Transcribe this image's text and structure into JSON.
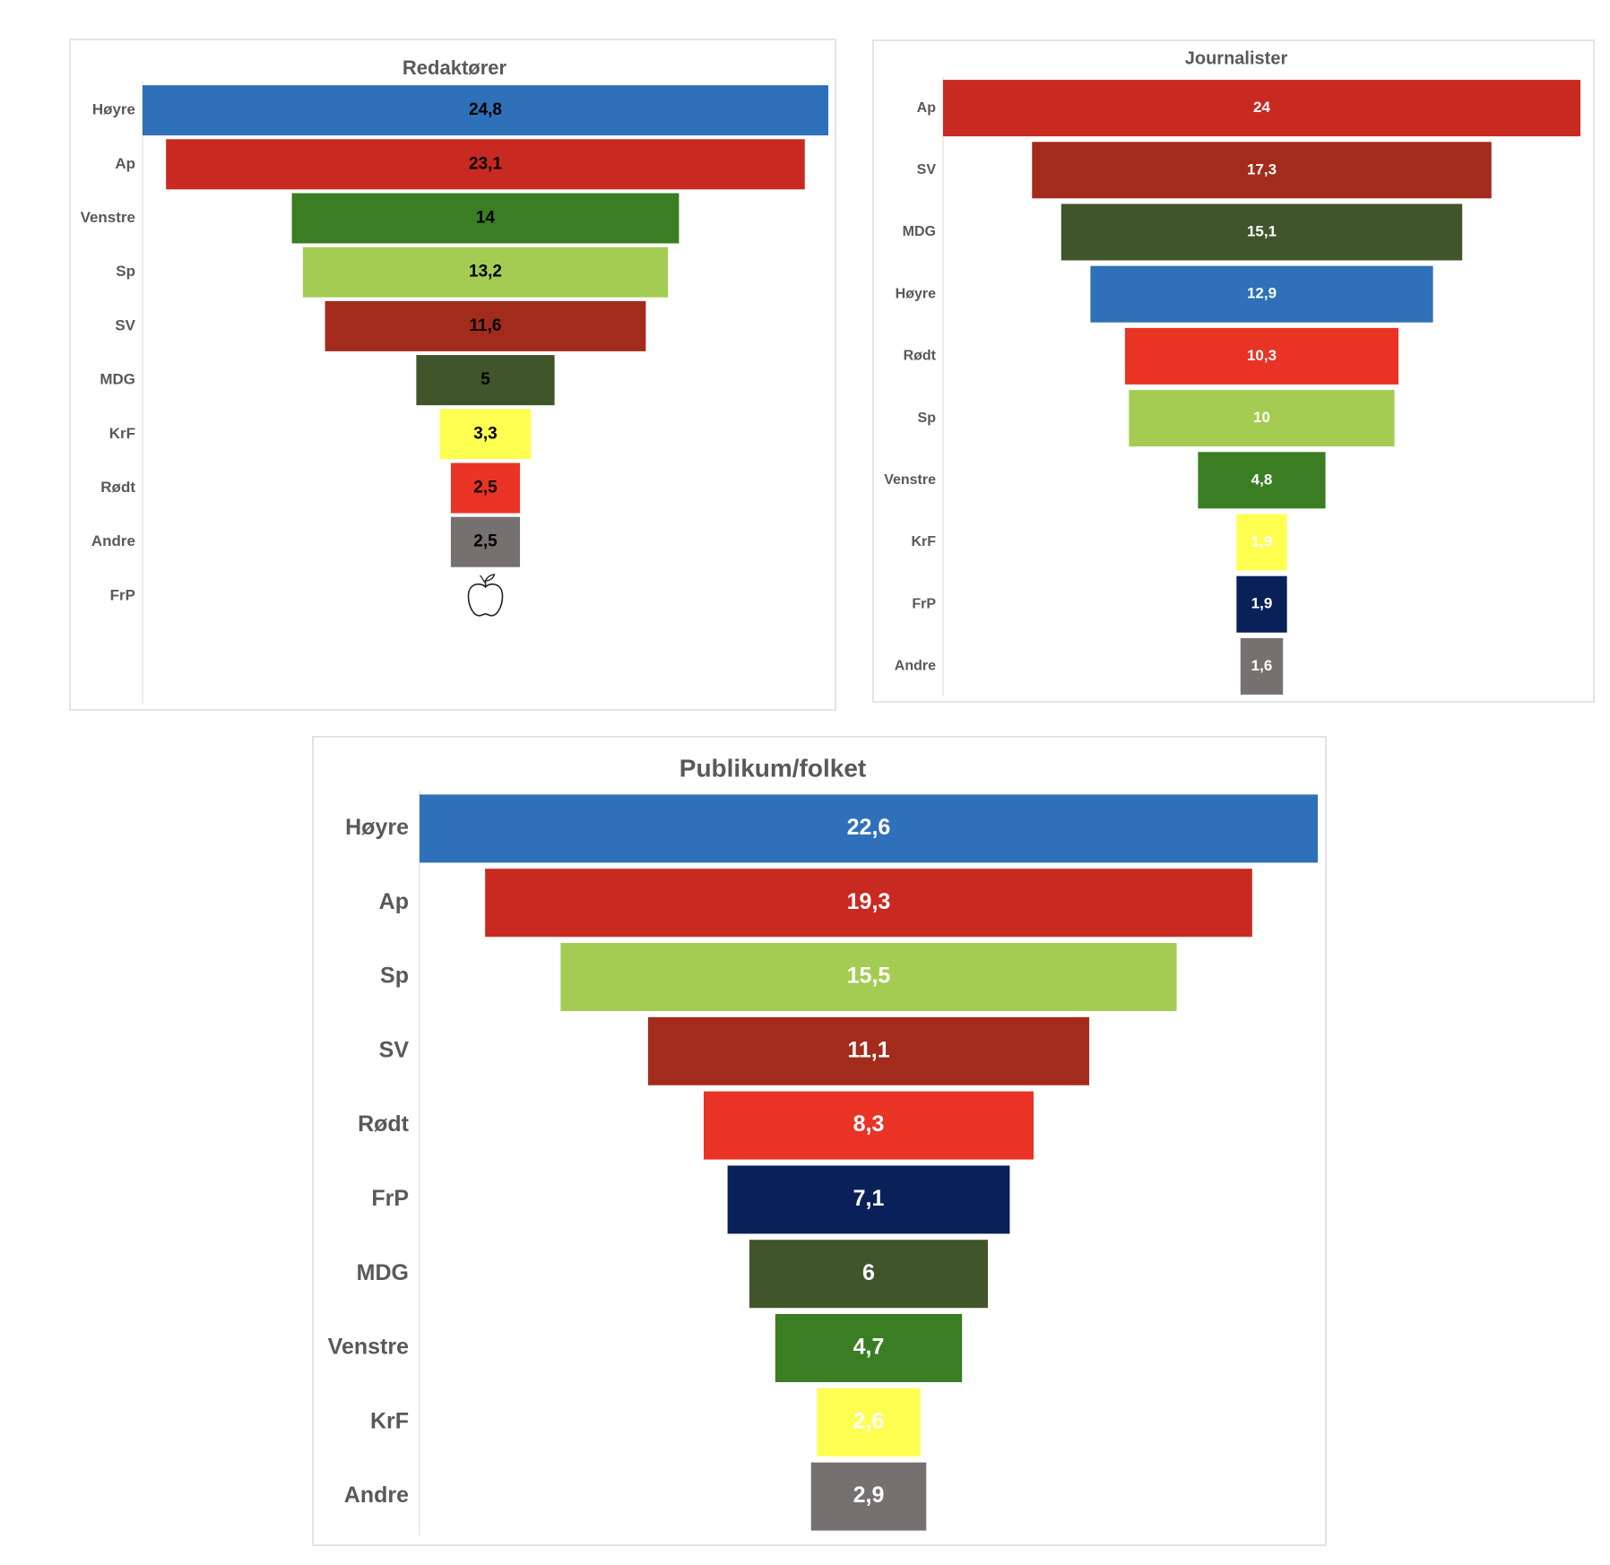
{
  "chart_data": [
    {
      "id": "redaktorer",
      "type": "bar",
      "subtype": "funnel",
      "title": "Redaktører",
      "categories": [
        "Høyre",
        "Ap",
        "Venstre",
        "Sp",
        "SV",
        "MDG",
        "KrF",
        "Rødt",
        "Andre",
        "FrP"
      ],
      "values": [
        24.8,
        23.1,
        14,
        13.2,
        11.6,
        5,
        3.3,
        2.5,
        2.5,
        0
      ],
      "labels": [
        "24,8",
        "23,1",
        "14",
        "13,2",
        "11,6",
        "5",
        "3,3",
        "2,5",
        "2,5",
        ""
      ],
      "colors": [
        "#2e70b9",
        "#c82a21",
        "#3a7d23",
        "#a4cc53",
        "#a32b1c",
        "#41552b",
        "#ffff52",
        "#e83325",
        "#767171",
        "#0a2059"
      ],
      "label_color": "#000000",
      "annotation": {
        "category": "FrP",
        "icon": "apple-icon"
      },
      "xlabel": "",
      "ylabel": "",
      "grid": false,
      "legend": "none"
    },
    {
      "id": "journalister",
      "type": "bar",
      "subtype": "funnel",
      "title": "Journalister",
      "categories": [
        "Ap",
        "SV",
        "MDG",
        "Høyre",
        "Rødt",
        "Sp",
        "Venstre",
        "KrF",
        "FrP",
        "Andre"
      ],
      "values": [
        24,
        17.3,
        15.1,
        12.9,
        10.3,
        10,
        4.8,
        1.9,
        1.9,
        1.6
      ],
      "labels": [
        "24",
        "17,3",
        "15,1",
        "12,9",
        "10,3",
        "10",
        "4,8",
        "1,9",
        "1,9",
        "1,6"
      ],
      "colors": [
        "#c82a21",
        "#a32b1c",
        "#41552b",
        "#2e70b9",
        "#e83325",
        "#a4cc53",
        "#3a7d23",
        "#ffff52",
        "#0a2059",
        "#767171"
      ],
      "label_color": "#ffffff",
      "xlabel": "",
      "ylabel": "",
      "grid": false,
      "legend": "none"
    },
    {
      "id": "publikum",
      "type": "bar",
      "subtype": "funnel",
      "title": "Publikum/folket",
      "categories": [
        "Høyre",
        "Ap",
        "Sp",
        "SV",
        "Rødt",
        "FrP",
        "MDG",
        "Venstre",
        "KrF",
        "Andre"
      ],
      "values": [
        22.6,
        19.3,
        15.5,
        11.1,
        8.3,
        7.1,
        6,
        4.7,
        2.6,
        2.9
      ],
      "labels": [
        "22,6",
        "19,3",
        "15,5",
        "11,1",
        "8,3",
        "7,1",
        "6",
        "4,7",
        "2,6",
        "2,9"
      ],
      "colors": [
        "#2e70b9",
        "#c82a21",
        "#a4cc53",
        "#a32b1c",
        "#e83325",
        "#0a2059",
        "#41552b",
        "#3a7d23",
        "#ffff52",
        "#767171"
      ],
      "label_color": "#ffffff",
      "xlabel": "",
      "ylabel": "",
      "grid": false,
      "legend": "none"
    }
  ]
}
